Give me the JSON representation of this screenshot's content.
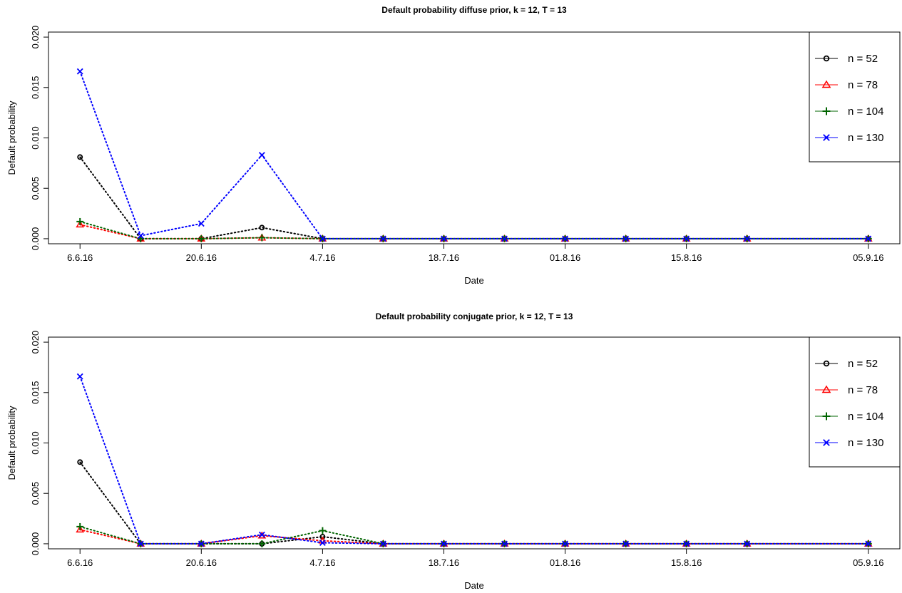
{
  "charts": [
    {
      "type": "line",
      "title": "Default probability diffuse prior, k = 12, T = 13",
      "xlabel": "Date",
      "ylabel": "Default probability",
      "ylim": [
        -0.0005,
        0.0205
      ],
      "y_ticks": [
        0.0,
        0.005,
        0.01,
        0.015,
        0.02
      ],
      "y_tick_labels": [
        "0.000",
        "0.005",
        "0.010",
        "0.015",
        "0.020"
      ],
      "x": [
        "2016-06-06",
        "2016-06-13",
        "2016-06-20",
        "2016-06-27",
        "2016-07-04",
        "2016-07-11",
        "2016-07-18",
        "2016-07-25",
        "2016-08-01",
        "2016-08-08",
        "2016-08-15",
        "2016-08-22",
        "2016-09-05"
      ],
      "x_ticks": [
        "2016-06-06",
        "2016-06-20",
        "2016-07-04",
        "2016-07-18",
        "2016-08-01",
        "2016-08-15",
        "2016-09-05"
      ],
      "x_tick_labels": [
        "6.6.16",
        "20.6.16",
        "4.7.16",
        "18.7.16",
        "01.8.16",
        "15.8.16",
        "05.9.16"
      ],
      "legend_position": "top-right",
      "line_style": "dotted",
      "series": [
        {
          "name": "n = 52",
          "color": "#000000",
          "marker": "circle",
          "values": [
            0.0081,
            0.0,
            0.0,
            0.0011,
            0.0,
            0.0,
            0.0,
            0.0,
            0.0,
            0.0,
            0.0,
            0.0,
            0.0
          ]
        },
        {
          "name": "n = 78",
          "color": "#ff0000",
          "marker": "triangle",
          "values": [
            0.0014,
            0.0,
            0.0,
            0.0001,
            0.0,
            0.0,
            0.0,
            0.0,
            0.0,
            0.0,
            0.0,
            0.0,
            0.0
          ]
        },
        {
          "name": "n = 104",
          "color": "#006400",
          "marker": "plus",
          "values": [
            0.0017,
            0.0,
            0.0,
            0.0001,
            0.0,
            0.0,
            0.0,
            0.0,
            0.0,
            0.0,
            0.0,
            0.0,
            0.0
          ]
        },
        {
          "name": "n = 130",
          "color": "#0000ff",
          "marker": "cross",
          "values": [
            0.0166,
            0.0003,
            0.0015,
            0.0083,
            0.0,
            0.0,
            0.0,
            0.0,
            0.0,
            0.0,
            0.0,
            0.0,
            0.0
          ]
        }
      ]
    },
    {
      "type": "line",
      "title": "Default probability conjugate prior, k = 12, T = 13",
      "xlabel": "Date",
      "ylabel": "Default probability",
      "ylim": [
        -0.0005,
        0.0205
      ],
      "y_ticks": [
        0.0,
        0.005,
        0.01,
        0.015,
        0.02
      ],
      "y_tick_labels": [
        "0.000",
        "0.005",
        "0.010",
        "0.015",
        "0.020"
      ],
      "x": [
        "2016-06-06",
        "2016-06-13",
        "2016-06-20",
        "2016-06-27",
        "2016-07-04",
        "2016-07-11",
        "2016-07-18",
        "2016-07-25",
        "2016-08-01",
        "2016-08-08",
        "2016-08-15",
        "2016-08-22",
        "2016-09-05"
      ],
      "x_ticks": [
        "2016-06-06",
        "2016-06-20",
        "2016-07-04",
        "2016-07-18",
        "2016-08-01",
        "2016-08-15",
        "2016-09-05"
      ],
      "x_tick_labels": [
        "6.6.16",
        "20.6.16",
        "4.7.16",
        "18.7.16",
        "01.8.16",
        "15.8.16",
        "05.9.16"
      ],
      "legend_position": "top-right",
      "line_style": "dotted",
      "series": [
        {
          "name": "n = 52",
          "color": "#000000",
          "marker": "circle",
          "values": [
            0.0081,
            0.0,
            0.0,
            0.0,
            0.0007,
            0.0,
            0.0,
            0.0,
            0.0,
            0.0,
            0.0,
            0.0,
            0.0
          ]
        },
        {
          "name": "n = 78",
          "color": "#ff0000",
          "marker": "triangle",
          "values": [
            0.0014,
            0.0,
            0.0,
            0.0008,
            0.0003,
            0.0,
            0.0,
            0.0,
            0.0,
            0.0,
            0.0,
            0.0,
            0.0
          ]
        },
        {
          "name": "n = 104",
          "color": "#006400",
          "marker": "plus",
          "values": [
            0.0017,
            0.0,
            0.0,
            0.0,
            0.0013,
            0.0,
            0.0,
            0.0,
            0.0,
            0.0,
            0.0,
            0.0,
            0.0
          ]
        },
        {
          "name": "n = 130",
          "color": "#0000ff",
          "marker": "cross",
          "values": [
            0.0166,
            0.0,
            0.0,
            0.0009,
            0.0001,
            0.0,
            0.0,
            0.0,
            0.0,
            0.0,
            0.0,
            0.0,
            0.0
          ]
        }
      ]
    }
  ]
}
